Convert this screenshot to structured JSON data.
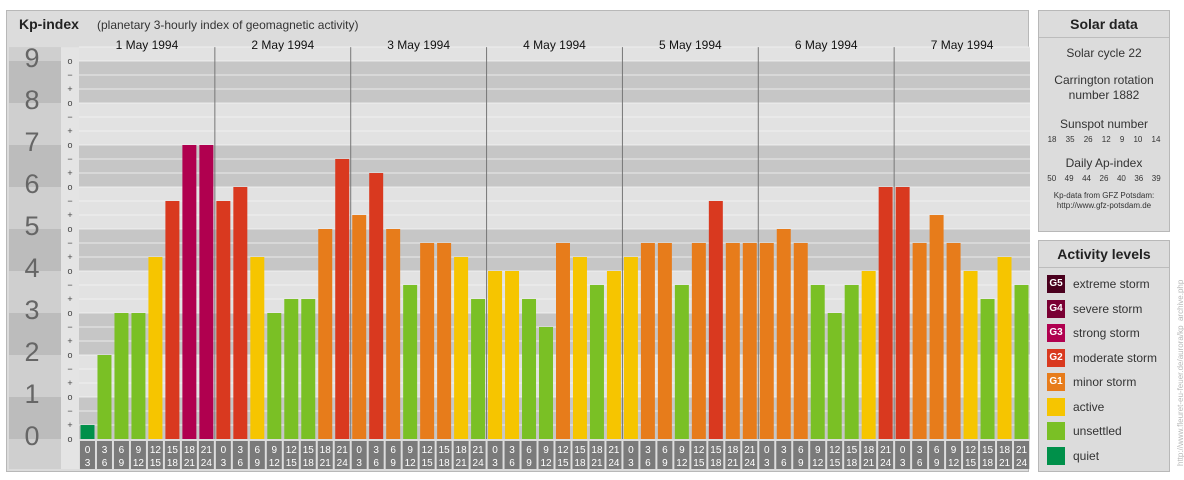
{
  "header": {
    "title": "Kp-index",
    "subtitle": "(planetary 3-hourly index of geomagnetic activity)"
  },
  "chart_data": {
    "type": "bar",
    "y_axis_labels": [
      "0",
      "1",
      "2",
      "3",
      "4",
      "5",
      "6",
      "7",
      "8",
      "9"
    ],
    "minor_tick_labels": [
      "o",
      "+",
      "−"
    ],
    "ylim": [
      0,
      9.33
    ],
    "days": [
      "1 May 1994",
      "2 May 1994",
      "3 May 1994",
      "4 May 1994",
      "5 May 1994",
      "6 May 1994",
      "7 May 1994"
    ],
    "interval_starts": [
      "0",
      "3",
      "6",
      "9",
      "12",
      "15",
      "18",
      "21"
    ],
    "interval_ends": [
      "3",
      "6",
      "9",
      "12",
      "15",
      "18",
      "21",
      "24"
    ],
    "values": [
      0.333,
      2,
      3,
      3,
      4.333,
      5.667,
      7,
      7,
      5.667,
      6,
      4.333,
      3,
      3.333,
      3.333,
      5,
      6.667,
      5.333,
      6.333,
      5,
      3.667,
      4.667,
      4.667,
      4.333,
      3.333,
      4,
      4,
      3.333,
      2.667,
      4.667,
      4.333,
      3.667,
      4,
      4.333,
      4.667,
      4.667,
      3.667,
      4.667,
      5.667,
      4.667,
      4.667,
      4.667,
      5,
      4.667,
      3.667,
      3,
      3.667,
      4,
      6,
      6,
      4.667,
      5.333,
      4.667,
      4,
      3.333,
      4.333,
      3.667
    ],
    "level_colors": {
      "quiet": "#00904a",
      "unsettled": "#7ac025",
      "active": "#f6c500",
      "minor_storm": "#e77c1b",
      "moderate_storm": "#d9391f",
      "strong_storm": "#b0004f",
      "severe_storm": "#7a0033",
      "extreme_storm": "#4a001e"
    }
  },
  "solar_data": {
    "title": "Solar data",
    "solar_cycle": "Solar cycle 22",
    "carrington_line1": "Carrington rotation",
    "carrington_line2": "number 1882",
    "sunspot_label": "Sunspot number",
    "sunspot_values": [
      "18",
      "35",
      "26",
      "12",
      "9",
      "10",
      "14"
    ],
    "ap_label": "Daily Ap-index",
    "ap_values": [
      "50",
      "49",
      "44",
      "26",
      "40",
      "36",
      "39"
    ],
    "source_line1": "Kp-data from GFZ Potsdam:",
    "source_line2": "http://www.gfz-potsdam.de"
  },
  "activity_levels": {
    "title": "Activity levels",
    "items": [
      {
        "code": "G5",
        "label": "extreme storm",
        "color": "#4a001e"
      },
      {
        "code": "G4",
        "label": "severe storm",
        "color": "#7a0033"
      },
      {
        "code": "G3",
        "label": "strong storm",
        "color": "#b0004f"
      },
      {
        "code": "G2",
        "label": "moderate storm",
        "color": "#d9391f"
      },
      {
        "code": "G1",
        "label": "minor storm",
        "color": "#e77c1b"
      },
      {
        "code": "",
        "label": "active",
        "color": "#f6c500"
      },
      {
        "code": "",
        "label": "unsettled",
        "color": "#7ac025"
      },
      {
        "code": "",
        "label": "quiet",
        "color": "#00904a"
      }
    ]
  },
  "credit": "http://www.fleuret-eu-feuer.de/aurora/kp_archive.php"
}
